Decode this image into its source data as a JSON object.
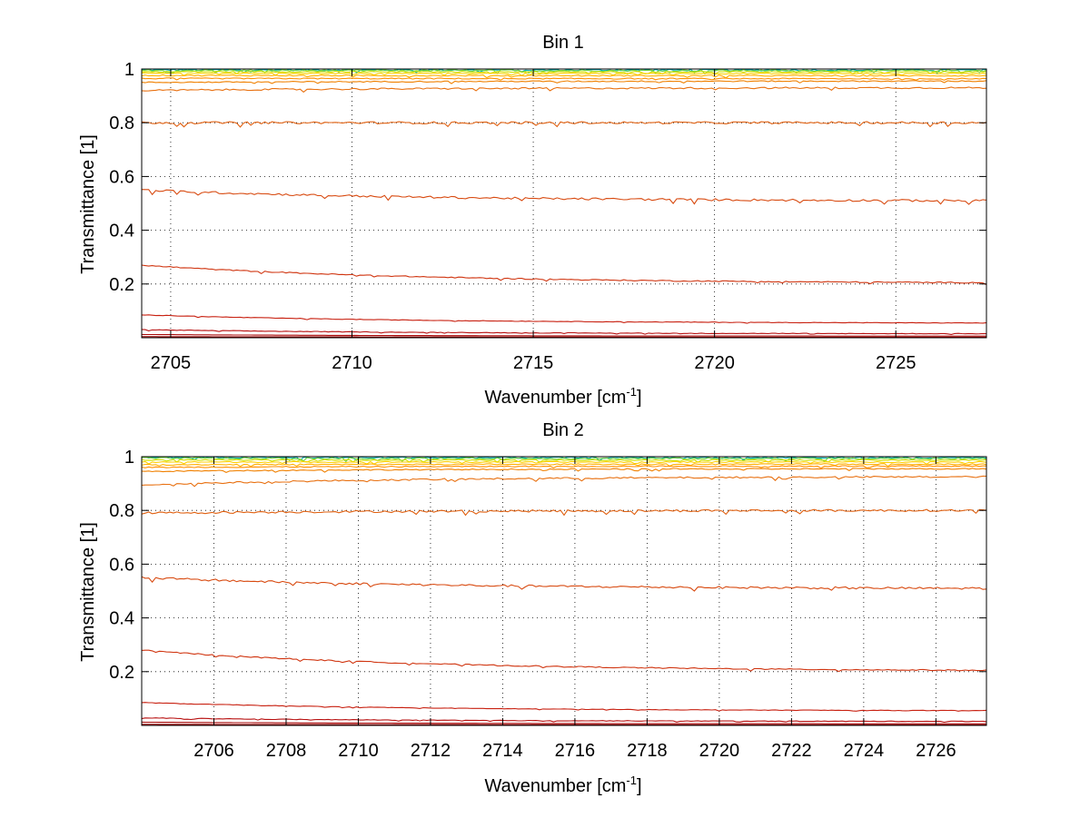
{
  "chart_data": [
    {
      "type": "line",
      "title": "Bin 1",
      "xlabel": "Wavenumber [cm",
      "xlabel_sup": "-1",
      "xlabel_tail": "]",
      "ylabel": "Transmittance [1]",
      "xlim": [
        2704.2,
        2727.5
      ],
      "ylim": [
        0,
        1
      ],
      "xticks": [
        2705,
        2710,
        2715,
        2720,
        2725
      ],
      "xtick_labels": [
        "2705",
        "2710",
        "2715",
        "2720",
        "2725"
      ],
      "yticks": [
        0.2,
        0.4,
        0.6,
        0.8,
        1
      ],
      "ytick_labels": [
        "0.2",
        "0.4",
        "0.6",
        "0.8",
        "1"
      ],
      "grid": true,
      "series": [
        {
          "color": "#00b0b0",
          "y_start": 0.997,
          "y_end": 0.996,
          "noise": 0.003
        },
        {
          "color": "#70d040",
          "y_start": 0.995,
          "y_end": 0.994,
          "noise": 0.003
        },
        {
          "color": "#d0e000",
          "y_start": 0.99,
          "y_end": 0.989,
          "noise": 0.002
        },
        {
          "color": "#ffd000",
          "y_start": 0.984,
          "y_end": 0.983,
          "noise": 0.002
        },
        {
          "color": "#ffb000",
          "y_start": 0.976,
          "y_end": 0.975,
          "noise": 0.002
        },
        {
          "color": "#ff9000",
          "y_start": 0.965,
          "y_end": 0.964,
          "noise": 0.002
        },
        {
          "color": "#f08000",
          "y_start": 0.95,
          "y_end": 0.955,
          "noise": 0.002
        },
        {
          "color": "#e87010",
          "y_start": 0.92,
          "y_end": 0.93,
          "noise": 0.003
        },
        {
          "color": "#e06010",
          "y_start": 0.8,
          "y_end": 0.8,
          "noise": 0.004
        },
        {
          "color": "#d84a10",
          "y_start": 0.55,
          "y_end": 0.51,
          "noise": 0.004
        },
        {
          "color": "#d03510",
          "y_start": 0.27,
          "y_end": 0.205,
          "noise": 0.002
        },
        {
          "color": "#c82010",
          "y_start": 0.085,
          "y_end": 0.055,
          "noise": 0.001
        },
        {
          "color": "#b81010",
          "y_start": 0.03,
          "y_end": 0.015,
          "noise": 0.001
        },
        {
          "color": "#a80808",
          "y_start": 0.012,
          "y_end": 0.006,
          "noise": 0.0
        },
        {
          "color": "#980000",
          "y_start": 0.004,
          "y_end": 0.002,
          "noise": 0.0
        }
      ]
    },
    {
      "type": "line",
      "title": "Bin 2",
      "xlabel": "Wavenumber [cm",
      "xlabel_sup": "-1",
      "xlabel_tail": "]",
      "ylabel": "Transmittance [1]",
      "xlim": [
        2704.0,
        2727.4
      ],
      "ylim": [
        0,
        1
      ],
      "xticks": [
        2706,
        2708,
        2710,
        2712,
        2714,
        2716,
        2718,
        2720,
        2722,
        2724,
        2726
      ],
      "xtick_labels": [
        "2706",
        "2708",
        "2710",
        "2712",
        "2714",
        "2716",
        "2718",
        "2720",
        "2722",
        "2724",
        "2726"
      ],
      "yticks": [
        0.2,
        0.4,
        0.6,
        0.8,
        1
      ],
      "ytick_labels": [
        "0.2",
        "0.4",
        "0.6",
        "0.8",
        "1"
      ],
      "grid": true,
      "series": [
        {
          "color": "#00b0b0",
          "y_start": 0.997,
          "y_end": 0.996,
          "noise": 0.003
        },
        {
          "color": "#70d040",
          "y_start": 0.994,
          "y_end": 0.993,
          "noise": 0.003
        },
        {
          "color": "#d0e000",
          "y_start": 0.988,
          "y_end": 0.987,
          "noise": 0.002
        },
        {
          "color": "#ffd000",
          "y_start": 0.98,
          "y_end": 0.98,
          "noise": 0.002
        },
        {
          "color": "#ffb000",
          "y_start": 0.97,
          "y_end": 0.972,
          "noise": 0.002
        },
        {
          "color": "#ff9000",
          "y_start": 0.96,
          "y_end": 0.965,
          "noise": 0.002
        },
        {
          "color": "#f08000",
          "y_start": 0.945,
          "y_end": 0.955,
          "noise": 0.002
        },
        {
          "color": "#e87010",
          "y_start": 0.895,
          "y_end": 0.925,
          "noise": 0.003
        },
        {
          "color": "#e06010",
          "y_start": 0.79,
          "y_end": 0.8,
          "noise": 0.004
        },
        {
          "color": "#d84a10",
          "y_start": 0.55,
          "y_end": 0.51,
          "noise": 0.004
        },
        {
          "color": "#d03510",
          "y_start": 0.28,
          "y_end": 0.205,
          "noise": 0.002
        },
        {
          "color": "#c82010",
          "y_start": 0.085,
          "y_end": 0.055,
          "noise": 0.001
        },
        {
          "color": "#b81010",
          "y_start": 0.028,
          "y_end": 0.015,
          "noise": 0.001
        },
        {
          "color": "#a80808",
          "y_start": 0.012,
          "y_end": 0.006,
          "noise": 0.0
        },
        {
          "color": "#980000",
          "y_start": 0.004,
          "y_end": 0.002,
          "noise": 0.0
        }
      ]
    }
  ]
}
